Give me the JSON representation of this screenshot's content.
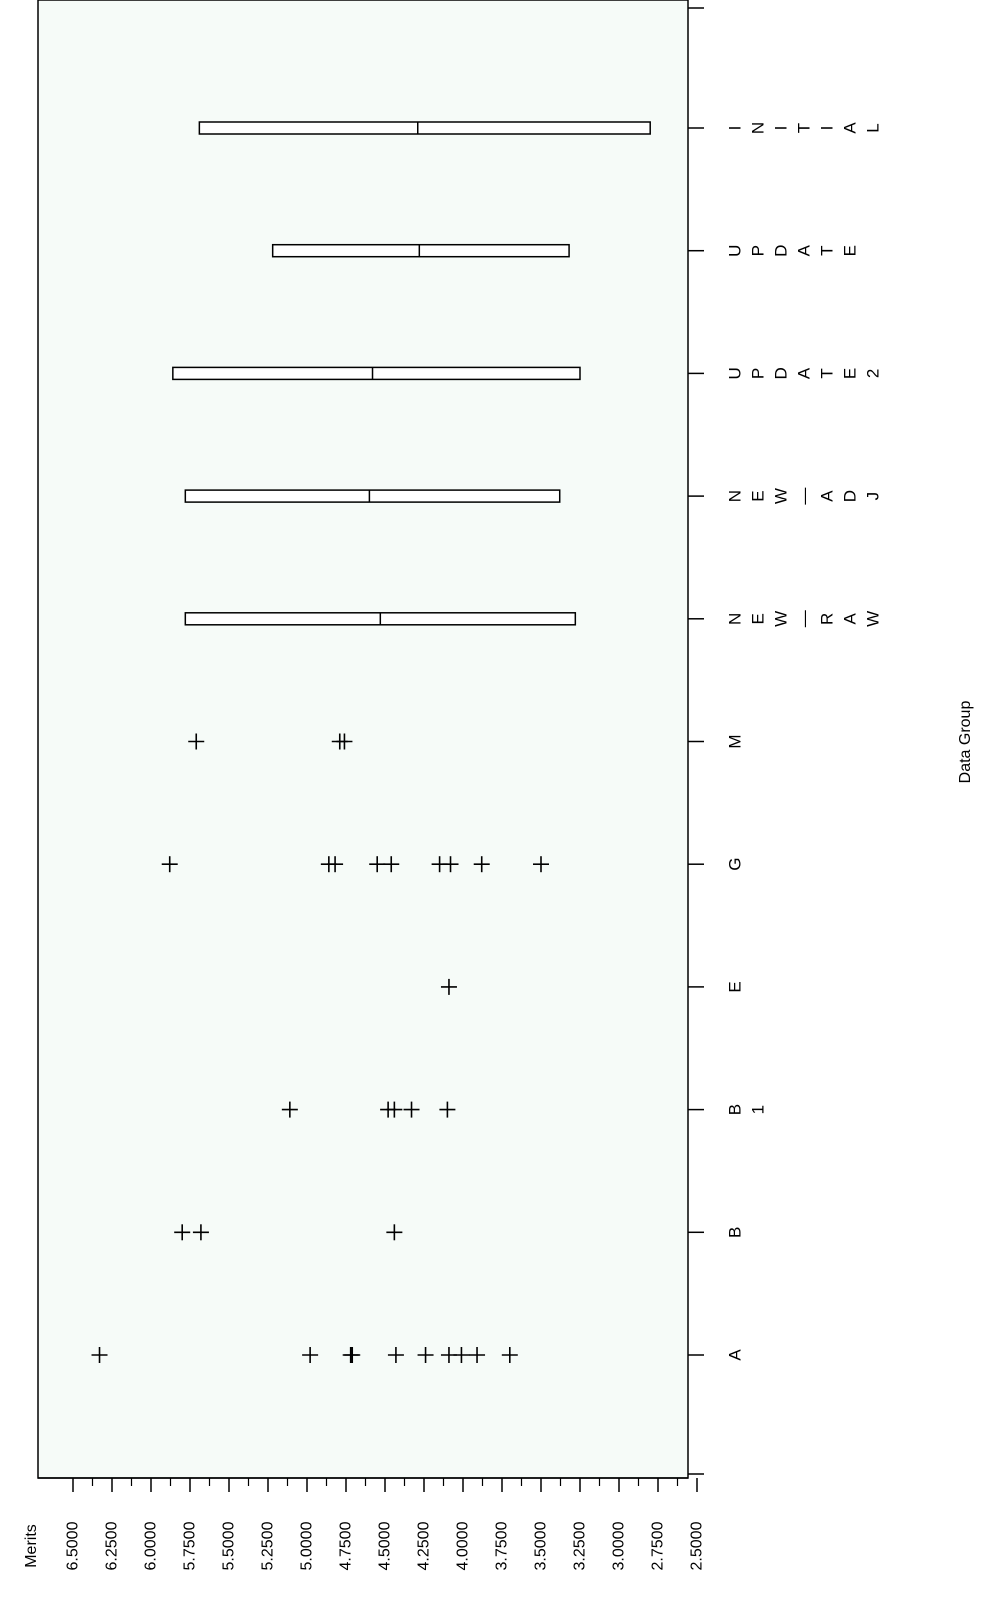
{
  "chart_data": {
    "type": "box-and-scatter",
    "orientation": "rotated-90-ccw",
    "xlabel": "Data Group",
    "ylabel": "Merits",
    "ylim": [
      2.5,
      6.5
    ],
    "yticks": [
      "6.5000",
      "6.2500",
      "6.0000",
      "5.7500",
      "5.5000",
      "5.2500",
      "5.0000",
      "4.7500",
      "4.5000",
      "4.2500",
      "4.0000",
      "3.7500",
      "3.5000",
      "3.2500",
      "3.0000",
      "2.7500",
      "2.5000"
    ],
    "categories": [
      "A",
      "B",
      "B1",
      "E",
      "G",
      "M",
      "NEW_RAW",
      "NEW_ADJ",
      "UPDATE2",
      "UPDATE",
      "INITIAL"
    ],
    "scatter": [
      {
        "category": "A",
        "values": [
          6.33,
          4.98,
          4.72,
          4.71,
          4.43,
          4.24,
          4.09,
          4.01,
          3.91,
          3.7
        ]
      },
      {
        "category": "B",
        "values": [
          5.8,
          5.68,
          4.44
        ]
      },
      {
        "category": "B1",
        "values": [
          5.11,
          4.48,
          4.44,
          4.33,
          4.1
        ]
      },
      {
        "category": "E",
        "values": [
          4.09
        ]
      },
      {
        "category": "G",
        "values": [
          5.88,
          4.86,
          4.82,
          4.55,
          4.46,
          4.15,
          4.08,
          3.88,
          3.5
        ]
      },
      {
        "category": "M",
        "values": [
          5.71,
          4.79,
          4.76
        ]
      }
    ],
    "boxes": [
      {
        "category": "NEW_RAW",
        "max": 5.78,
        "median": 4.53,
        "min": 3.28
      },
      {
        "category": "NEW_ADJ",
        "max": 5.78,
        "median": 4.6,
        "min": 3.38
      },
      {
        "category": "UPDATE2",
        "max": 5.86,
        "median": 4.58,
        "min": 3.25
      },
      {
        "category": "UPDATE",
        "max": 5.22,
        "median": 4.28,
        "min": 3.32
      },
      {
        "category": "INITIAL",
        "max": 5.69,
        "median": 4.29,
        "min": 2.8
      }
    ],
    "grid": false,
    "legend": "none"
  }
}
